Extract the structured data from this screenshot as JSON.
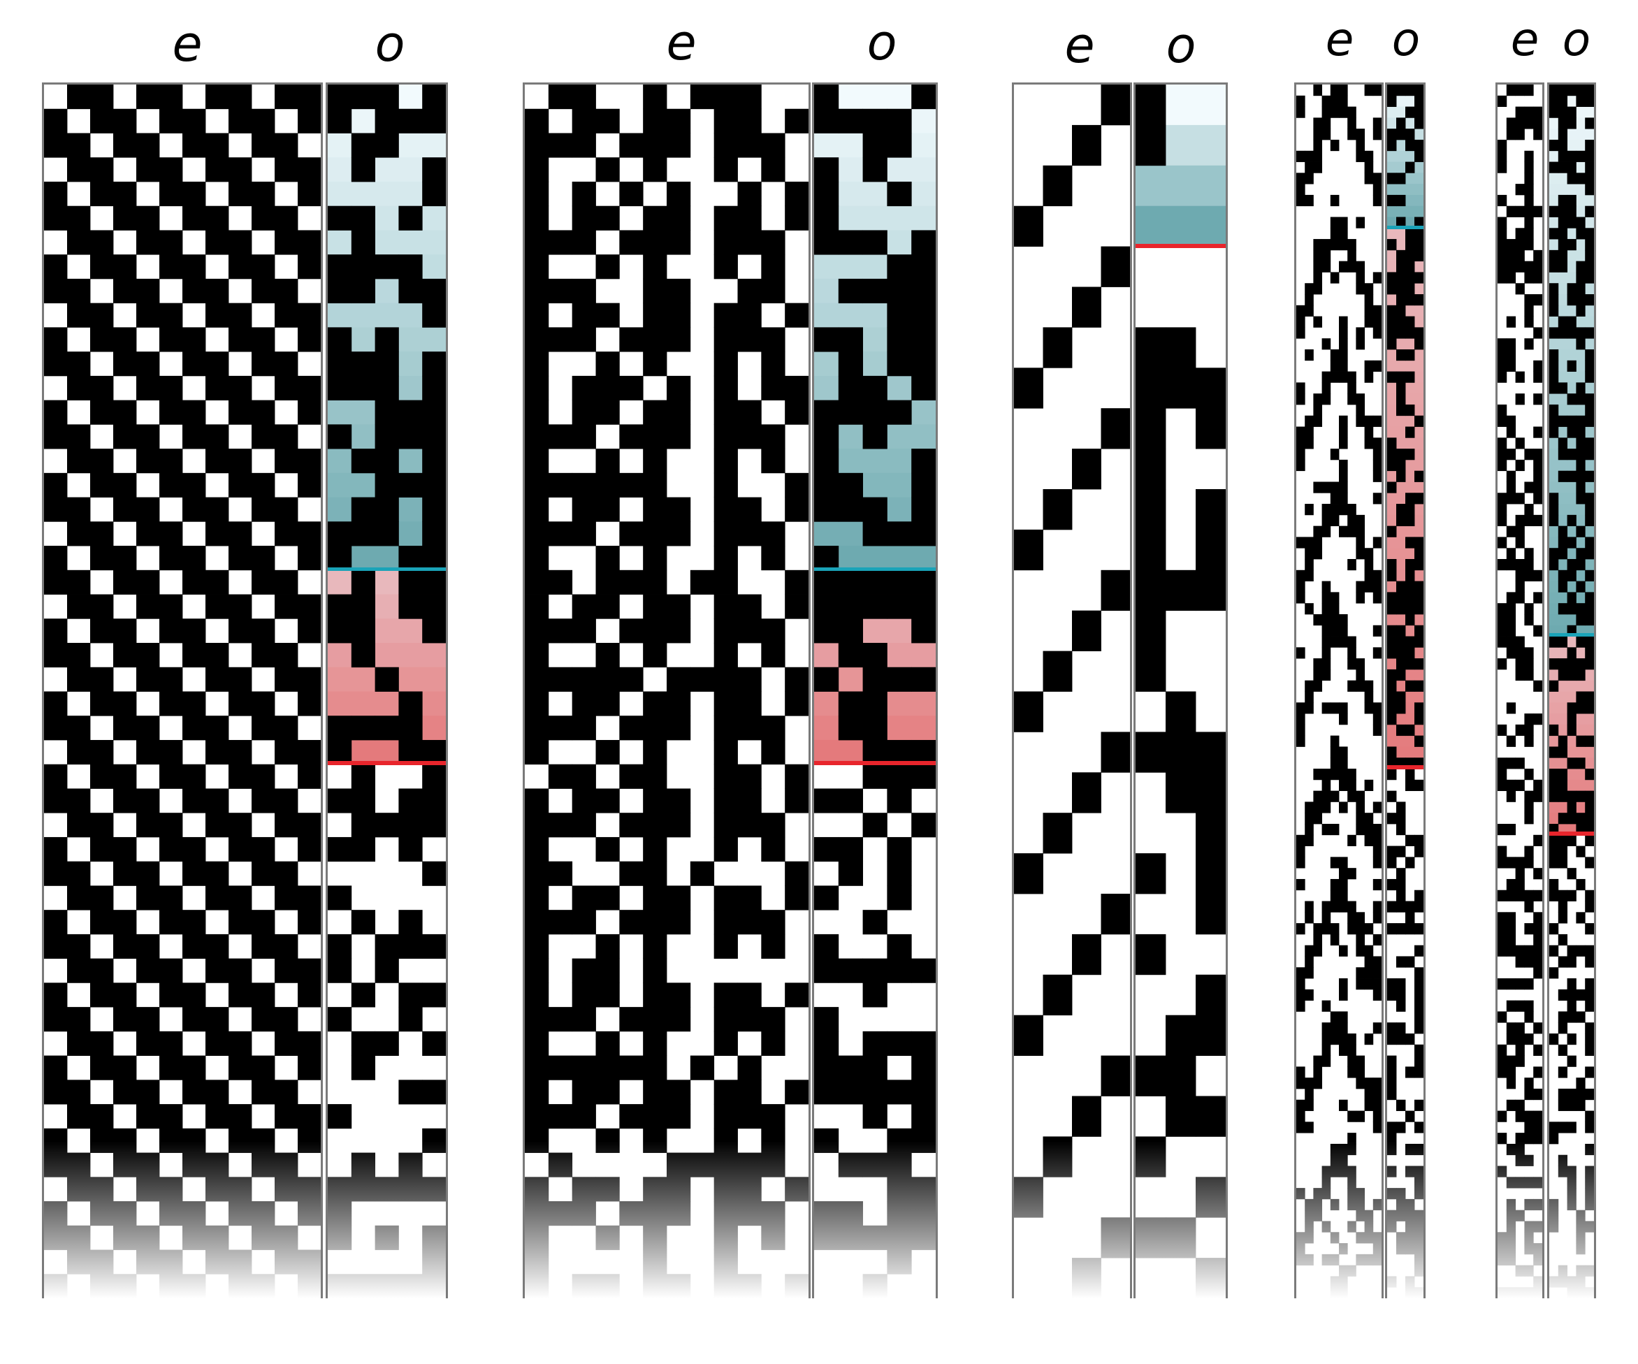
{
  "labels": {
    "e": "e",
    "o": "o"
  },
  "colors": {
    "blue_top": "#f2fafd",
    "blue_bottom": "#6eaab0",
    "blue_mid": "#8fd0ea",
    "red_top": "#e8b8bc",
    "red_bottom": "#e47a7c",
    "blue_edge": "#1aa3b8",
    "red_edge": "#e8252c",
    "frame": "#7a7a7a"
  },
  "groups": [
    {
      "id": 1,
      "e_label": "e",
      "o_label": "o",
      "e_cols": 12,
      "o_cols": 5
    },
    {
      "id": 2,
      "e_label": "e",
      "o_label": "o",
      "e_cols": 12,
      "o_cols": 5
    },
    {
      "id": 3,
      "e_label": "e",
      "o_label": "o",
      "e_cols": 4,
      "o_cols": 3
    },
    {
      "id": 4,
      "e_label": "e",
      "o_label": "o",
      "e_cols": 10,
      "o_cols": 4
    },
    {
      "id": 5,
      "e_label": "e",
      "o_label": "o",
      "e_cols": 5,
      "o_cols": 5
    }
  ]
}
